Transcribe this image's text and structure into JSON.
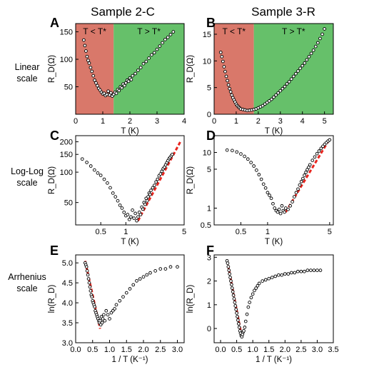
{
  "figure": {
    "column_titles": [
      "Sample 2-C",
      "Sample 3-R"
    ],
    "row_labels": [
      [
        "Linear",
        "scale"
      ],
      [
        "Log-Log",
        "scale"
      ],
      [
        "Arrhenius",
        "scale"
      ]
    ],
    "colors": {
      "low_T_region": "#d9786a",
      "high_T_region": "#66c06a",
      "fit_line": "#e8251e",
      "markers": "#000000"
    }
  },
  "chart_data": [
    {
      "panel": "A",
      "type": "scatter",
      "sample": "Sample 2-C",
      "scale": "linear",
      "xlabel": "T (K)",
      "ylabel": "R_D(Ω)",
      "xlim": [
        0,
        4
      ],
      "ylim": [
        0,
        165
      ],
      "xticks": [
        0,
        1,
        2,
        3,
        4
      ],
      "yticks": [
        50,
        100,
        150
      ],
      "regions": [
        {
          "label": "T < T*",
          "x_range": [
            0,
            1.4
          ],
          "color": "#d9786a"
        },
        {
          "label": "T > T*",
          "x_range": [
            1.4,
            4
          ],
          "color": "#66c06a"
        }
      ],
      "x": [
        0.3,
        0.34,
        0.38,
        0.42,
        0.46,
        0.5,
        0.55,
        0.6,
        0.65,
        0.7,
        0.75,
        0.8,
        0.85,
        0.9,
        0.95,
        1.0,
        1.05,
        1.1,
        1.15,
        1.2,
        1.25,
        1.3,
        1.35,
        1.4,
        1.45,
        1.5,
        1.55,
        1.6,
        1.65,
        1.7,
        1.75,
        1.8,
        1.85,
        1.9,
        1.95,
        2.0,
        2.05,
        2.1,
        2.2,
        2.3,
        2.4,
        2.5,
        2.6,
        2.7,
        2.8,
        2.9,
        3.0,
        3.1,
        3.2,
        3.3,
        3.4,
        3.5,
        3.6
      ],
      "y": [
        135,
        125,
        115,
        105,
        98,
        93,
        85,
        78,
        70,
        62,
        57,
        52,
        47,
        44,
        40,
        37,
        38,
        34,
        36,
        42,
        35,
        39,
        33,
        36,
        40,
        38,
        45,
        43,
        50,
        48,
        55,
        52,
        57,
        62,
        60,
        66,
        63,
        70,
        74,
        80,
        85,
        92,
        96,
        102,
        108,
        112,
        118,
        124,
        130,
        136,
        140,
        145,
        150
      ]
    },
    {
      "panel": "B",
      "type": "scatter",
      "sample": "Sample 3-R",
      "scale": "linear",
      "xlabel": "T (K)",
      "ylabel": "R_D(Ω)",
      "xlim": [
        0,
        5.4
      ],
      "ylim": [
        0,
        17
      ],
      "xticks": [
        0,
        1,
        2,
        3,
        4,
        5
      ],
      "yticks": [
        0,
        5,
        10,
        15
      ],
      "regions": [
        {
          "label": "T < T*",
          "x_range": [
            0,
            1.8
          ],
          "color": "#d9786a"
        },
        {
          "label": "T > T*",
          "x_range": [
            1.8,
            5.4
          ],
          "color": "#66c06a"
        }
      ],
      "x": [
        0.3,
        0.35,
        0.4,
        0.45,
        0.5,
        0.55,
        0.6,
        0.65,
        0.7,
        0.75,
        0.8,
        0.85,
        0.9,
        0.95,
        1.0,
        1.05,
        1.1,
        1.15,
        1.2,
        1.3,
        1.4,
        1.5,
        1.6,
        1.7,
        1.8,
        1.9,
        2.0,
        2.1,
        2.2,
        2.3,
        2.4,
        2.5,
        2.6,
        2.7,
        2.8,
        2.9,
        3.0,
        3.1,
        3.2,
        3.3,
        3.4,
        3.5,
        3.6,
        3.7,
        3.8,
        3.9,
        4.0,
        4.1,
        4.2,
        4.3,
        4.4,
        4.5,
        4.6,
        4.7,
        4.8,
        4.9,
        5.0
      ],
      "y": [
        11.6,
        10.8,
        9.9,
        8.9,
        8.0,
        7.1,
        6.3,
        5.5,
        4.8,
        4.2,
        3.6,
        3.1,
        2.7,
        2.3,
        1.9,
        1.6,
        1.4,
        1.2,
        1.0,
        0.9,
        0.8,
        0.7,
        0.75,
        0.8,
        0.9,
        1.0,
        1.2,
        1.4,
        1.6,
        1.9,
        2.2,
        2.5,
        2.8,
        3.2,
        3.6,
        4.0,
        4.4,
        4.8,
        5.2,
        5.7,
        6.1,
        6.6,
        7.1,
        7.6,
        8.1,
        8.6,
        9.1,
        9.6,
        10.2,
        10.8,
        11.4,
        12.0,
        12.7,
        13.4,
        14.2,
        15.0,
        16.0
      ]
    },
    {
      "panel": "C",
      "type": "scatter",
      "sample": "Sample 2-C",
      "scale": "log-log",
      "xlabel": "T (K)",
      "ylabel": "R_D(Ω)",
      "xlim": [
        0.25,
        5
      ],
      "ylim": [
        30,
        230
      ],
      "xticks": [
        0.5,
        1,
        5
      ],
      "yticks": [
        50,
        100,
        150,
        200
      ],
      "x": [
        0.3,
        0.34,
        0.38,
        0.42,
        0.46,
        0.5,
        0.55,
        0.6,
        0.65,
        0.7,
        0.75,
        0.8,
        0.85,
        0.9,
        0.95,
        1.0,
        1.05,
        1.1,
        1.15,
        1.2,
        1.25,
        1.3,
        1.35,
        1.4,
        1.45,
        1.5,
        1.55,
        1.6,
        1.65,
        1.7,
        1.75,
        1.8,
        1.85,
        1.9,
        1.95,
        2.0,
        2.1,
        2.2,
        2.3,
        2.4,
        2.5,
        2.6,
        2.7,
        2.8,
        2.9,
        3.0,
        3.1,
        3.2,
        3.3,
        3.4,
        3.5,
        3.6
      ],
      "y": [
        135,
        125,
        115,
        105,
        98,
        93,
        85,
        78,
        70,
        62,
        57,
        52,
        47,
        44,
        40,
        37,
        38,
        34,
        36,
        42,
        35,
        39,
        33,
        36,
        40,
        38,
        45,
        43,
        50,
        48,
        55,
        52,
        57,
        62,
        60,
        66,
        70,
        74,
        80,
        85,
        92,
        96,
        102,
        108,
        112,
        118,
        124,
        130,
        136,
        140,
        145,
        150
      ],
      "fit": {
        "x": [
          1.4,
          4.5
        ],
        "y": [
          33,
          200
        ]
      }
    },
    {
      "panel": "D",
      "type": "scatter",
      "sample": "Sample 3-R",
      "scale": "log-log",
      "xlabel": "T (K)",
      "ylabel": "R_D(Ω)",
      "xlim": [
        0.25,
        5.5
      ],
      "ylim": [
        0.5,
        20
      ],
      "xticks": [
        0.5,
        1,
        5
      ],
      "yticks": [
        0.5,
        1,
        5,
        10
      ],
      "x": [
        0.35,
        0.4,
        0.45,
        0.5,
        0.55,
        0.6,
        0.65,
        0.7,
        0.75,
        0.8,
        0.85,
        0.9,
        0.95,
        1.0,
        1.05,
        1.1,
        1.15,
        1.2,
        1.25,
        1.3,
        1.35,
        1.4,
        1.45,
        1.5,
        1.55,
        1.6,
        1.7,
        1.8,
        1.9,
        2.0,
        2.1,
        2.2,
        2.3,
        2.4,
        2.5,
        2.6,
        2.7,
        2.8,
        2.9,
        3.0,
        3.2,
        3.4,
        3.6,
        3.8,
        4.0,
        4.2,
        4.4,
        4.6,
        4.8,
        5.0
      ],
      "y": [
        11.0,
        10.8,
        10.2,
        9.4,
        8.5,
        7.6,
        6.6,
        5.7,
        4.8,
        4.0,
        3.3,
        2.7,
        2.3,
        1.9,
        1.7,
        1.5,
        1.2,
        1.0,
        0.9,
        0.85,
        0.95,
        0.8,
        1.1,
        0.9,
        0.85,
        1.0,
        0.95,
        1.1,
        1.3,
        1.6,
        1.9,
        2.2,
        2.6,
        3.0,
        3.4,
        3.9,
        4.4,
        4.9,
        5.4,
        6.0,
        7.2,
        8.3,
        9.5,
        10.6,
        11.8,
        12.9,
        14.0,
        15.0,
        16.0,
        16.8
      ],
      "fit": {
        "x": [
          1.6,
          5.0
        ],
        "y": [
          0.85,
          17.5
        ]
      }
    },
    {
      "panel": "E",
      "type": "scatter",
      "sample": "Sample 2-C",
      "scale": "arrhenius",
      "xlabel": "1 / T (K⁻¹)",
      "ylabel": "ln(R_D)",
      "xlim": [
        0,
        3.2
      ],
      "ylim": [
        3.0,
        5.2
      ],
      "xticks": [
        0.0,
        0.5,
        1.0,
        1.5,
        2.0,
        2.5,
        3.0
      ],
      "yticks": [
        3.0,
        3.5,
        4.0,
        4.5,
        5.0
      ],
      "x": [
        0.28,
        0.3,
        0.32,
        0.34,
        0.36,
        0.38,
        0.4,
        0.42,
        0.44,
        0.46,
        0.48,
        0.5,
        0.52,
        0.54,
        0.56,
        0.58,
        0.6,
        0.62,
        0.64,
        0.66,
        0.68,
        0.7,
        0.72,
        0.74,
        0.76,
        0.78,
        0.8,
        0.83,
        0.86,
        0.9,
        0.95,
        1.0,
        1.05,
        1.1,
        1.15,
        1.2,
        1.3,
        1.4,
        1.5,
        1.6,
        1.7,
        1.8,
        1.9,
        2.0,
        2.1,
        2.2,
        2.35,
        2.5,
        2.65,
        2.8,
        3.0
      ],
      "y": [
        5.0,
        4.95,
        4.9,
        4.8,
        4.7,
        4.6,
        4.5,
        4.4,
        4.3,
        4.2,
        4.15,
        4.05,
        4.0,
        3.95,
        3.9,
        3.8,
        3.75,
        3.7,
        3.65,
        3.6,
        3.55,
        3.5,
        3.55,
        3.45,
        3.65,
        3.5,
        3.6,
        3.7,
        3.55,
        3.8,
        3.7,
        3.6,
        3.75,
        3.8,
        3.85,
        3.95,
        4.05,
        4.15,
        4.25,
        4.35,
        4.45,
        4.55,
        4.6,
        4.65,
        4.7,
        4.75,
        4.8,
        4.85,
        4.85,
        4.9,
        4.9
      ],
      "fit": {
        "x": [
          0.28,
          0.72
        ],
        "y": [
          5.05,
          3.35
        ]
      }
    },
    {
      "panel": "F",
      "type": "scatter",
      "sample": "Sample 3-R",
      "scale": "arrhenius",
      "xlabel": "1 / T (K⁻¹)",
      "ylabel": "ln(R_D)",
      "xlim": [
        -0.2,
        3.5
      ],
      "ylim": [
        -0.6,
        3.1
      ],
      "xticks": [
        0.0,
        0.5,
        1.0,
        1.5,
        2.0,
        2.5,
        3.0,
        3.5
      ],
      "yticks": [
        0,
        1,
        2,
        3
      ],
      "x": [
        0.2,
        0.22,
        0.24,
        0.26,
        0.28,
        0.3,
        0.32,
        0.34,
        0.36,
        0.38,
        0.4,
        0.42,
        0.44,
        0.46,
        0.48,
        0.5,
        0.52,
        0.54,
        0.56,
        0.58,
        0.6,
        0.62,
        0.64,
        0.66,
        0.68,
        0.7,
        0.72,
        0.75,
        0.78,
        0.82,
        0.86,
        0.9,
        0.95,
        1.0,
        1.05,
        1.1,
        1.15,
        1.2,
        1.3,
        1.4,
        1.5,
        1.6,
        1.7,
        1.8,
        1.9,
        2.0,
        2.1,
        2.2,
        2.3,
        2.4,
        2.5,
        2.6,
        2.7,
        2.8,
        2.9,
        3.0,
        3.1
      ],
      "y": [
        2.85,
        2.75,
        2.6,
        2.45,
        2.3,
        2.15,
        2.0,
        1.85,
        1.7,
        1.55,
        1.4,
        1.25,
        1.1,
        0.95,
        0.8,
        0.65,
        0.5,
        0.35,
        0.2,
        0.05,
        -0.1,
        -0.2,
        -0.3,
        -0.35,
        -0.25,
        -0.15,
        -0.1,
        0.05,
        0.3,
        0.6,
        0.9,
        1.1,
        1.3,
        1.45,
        1.6,
        1.7,
        1.8,
        1.9,
        2.0,
        2.05,
        2.1,
        2.15,
        2.2,
        2.25,
        2.25,
        2.3,
        2.3,
        2.35,
        2.35,
        2.4,
        2.4,
        2.4,
        2.45,
        2.45,
        2.45,
        2.45,
        2.45
      ],
      "fit": {
        "x": [
          0.2,
          0.66
        ],
        "y": [
          2.9,
          -0.35
        ]
      }
    }
  ]
}
